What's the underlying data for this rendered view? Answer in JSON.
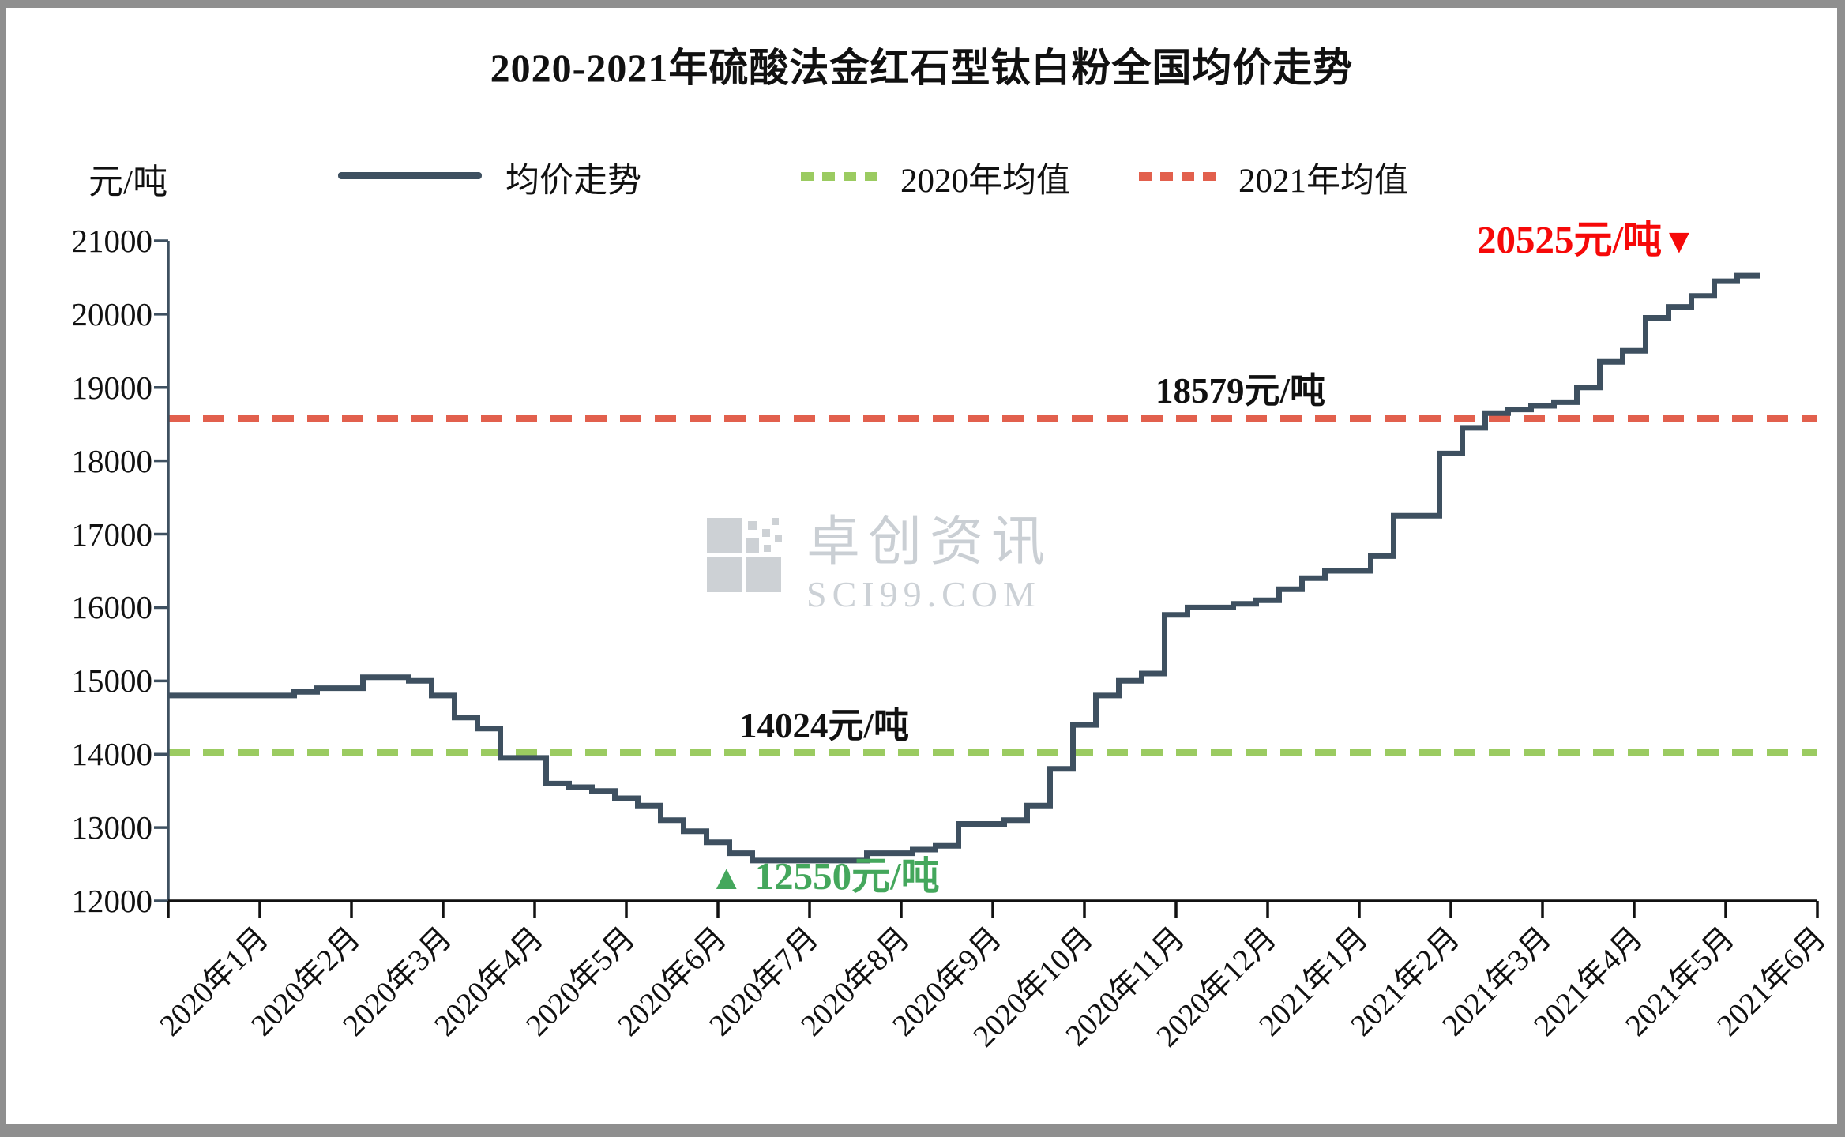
{
  "title": "2020-2021年硫酸法金红石型钛白粉全国均价走势",
  "y_axis": {
    "unit_label": "元/吨",
    "min": 12000,
    "max": 21000,
    "tick_step": 1000,
    "ticks": [
      21000,
      20000,
      19000,
      18000,
      17000,
      16000,
      15000,
      14000,
      13000,
      12000
    ]
  },
  "x_axis": {
    "categories": [
      "2020年1月",
      "2020年2月",
      "2020年3月",
      "2020年4月",
      "2020年5月",
      "2020年6月",
      "2020年7月",
      "2020年8月",
      "2020年9月",
      "2020年10月",
      "2020年11月",
      "2020年12月",
      "2021年1月",
      "2021年2月",
      "2021年3月",
      "2021年4月",
      "2021年5月",
      "2021年6月"
    ],
    "label_rotation_deg": 45
  },
  "legend": {
    "items": [
      {
        "label": "均价走势",
        "type": "line",
        "color": "#3e5060"
      },
      {
        "label": "2020年均值",
        "type": "dashed",
        "color": "#9bcb61"
      },
      {
        "label": "2021年均值",
        "type": "dashed",
        "color": "#e2604d"
      }
    ],
    "position": "top"
  },
  "colors": {
    "price_line": "#3e5060",
    "avg_2020_line": "#9bcb61",
    "avg_2021_line": "#e2604d",
    "latest_text": "#f60909",
    "min_text": "#44a75c",
    "x_axis_line": "#111111",
    "y_axis_line": "#3e5060",
    "watermark": "#cacfd4"
  },
  "annotations": {
    "avg_2021": {
      "text": "18579元/吨",
      "value": 18579
    },
    "avg_2020": {
      "text": "14024元/吨",
      "value": 14024
    },
    "latest": {
      "text": "20525元/吨",
      "marker": "▼",
      "value": 20525
    },
    "minimum": {
      "text": "12550元/吨",
      "marker": "▲",
      "value": 12550
    }
  },
  "watermark": {
    "cn": "卓创资讯",
    "en": "SCI99.COM"
  },
  "chart_data": {
    "type": "line",
    "title": "2020-2021年硫酸法金红石型钛白粉全国均价走势",
    "ylabel": "元/吨",
    "ylim": [
      12000,
      21000
    ],
    "grid": false,
    "legend_position": "top",
    "x_categories": [
      "2020年1月",
      "2020年2月",
      "2020年3月",
      "2020年4月",
      "2020年5月",
      "2020年6月",
      "2020年7月",
      "2020年8月",
      "2020年9月",
      "2020年10月",
      "2020年11月",
      "2020年12月",
      "2021年1月",
      "2021年2月",
      "2021年3月",
      "2021年4月",
      "2021年5月",
      "2021年6月"
    ],
    "series": [
      {
        "name": "均价走势",
        "style": "step",
        "monthly_weekly_values": [
          [
            14800,
            14800,
            14800,
            14800
          ],
          [
            14800,
            14850,
            14900,
            14900
          ],
          [
            15050,
            15050,
            15000,
            14800
          ],
          [
            14500,
            14350,
            13950,
            13950
          ],
          [
            13600,
            13550,
            13500,
            13400
          ],
          [
            13300,
            13100,
            12950,
            12800
          ],
          [
            12650,
            12550,
            12550,
            12550
          ],
          [
            12550,
            12550,
            12650,
            12650
          ],
          [
            12700,
            12750,
            13050,
            13050
          ],
          [
            13100,
            13300,
            13800,
            14400
          ],
          [
            14800,
            15000,
            15100,
            15900
          ],
          [
            16000,
            16000,
            16050,
            16100
          ],
          [
            16250,
            16400,
            16500,
            16500
          ],
          [
            16700,
            17250,
            17250,
            18100
          ],
          [
            18450,
            18650,
            18700,
            18750
          ],
          [
            18800,
            19000,
            19350,
            19500
          ],
          [
            19950,
            20100,
            20250,
            20450
          ],
          [
            20525,
            20525
          ]
        ]
      },
      {
        "name": "2020年均值",
        "style": "dashed-constant",
        "value": 14024
      },
      {
        "name": "2021年均值",
        "style": "dashed-constant",
        "value": 18579
      }
    ],
    "annotations": {
      "latest_price": 20525,
      "minimum_price": 12550,
      "avg_2020": 14024,
      "avg_2021": 18579
    }
  }
}
